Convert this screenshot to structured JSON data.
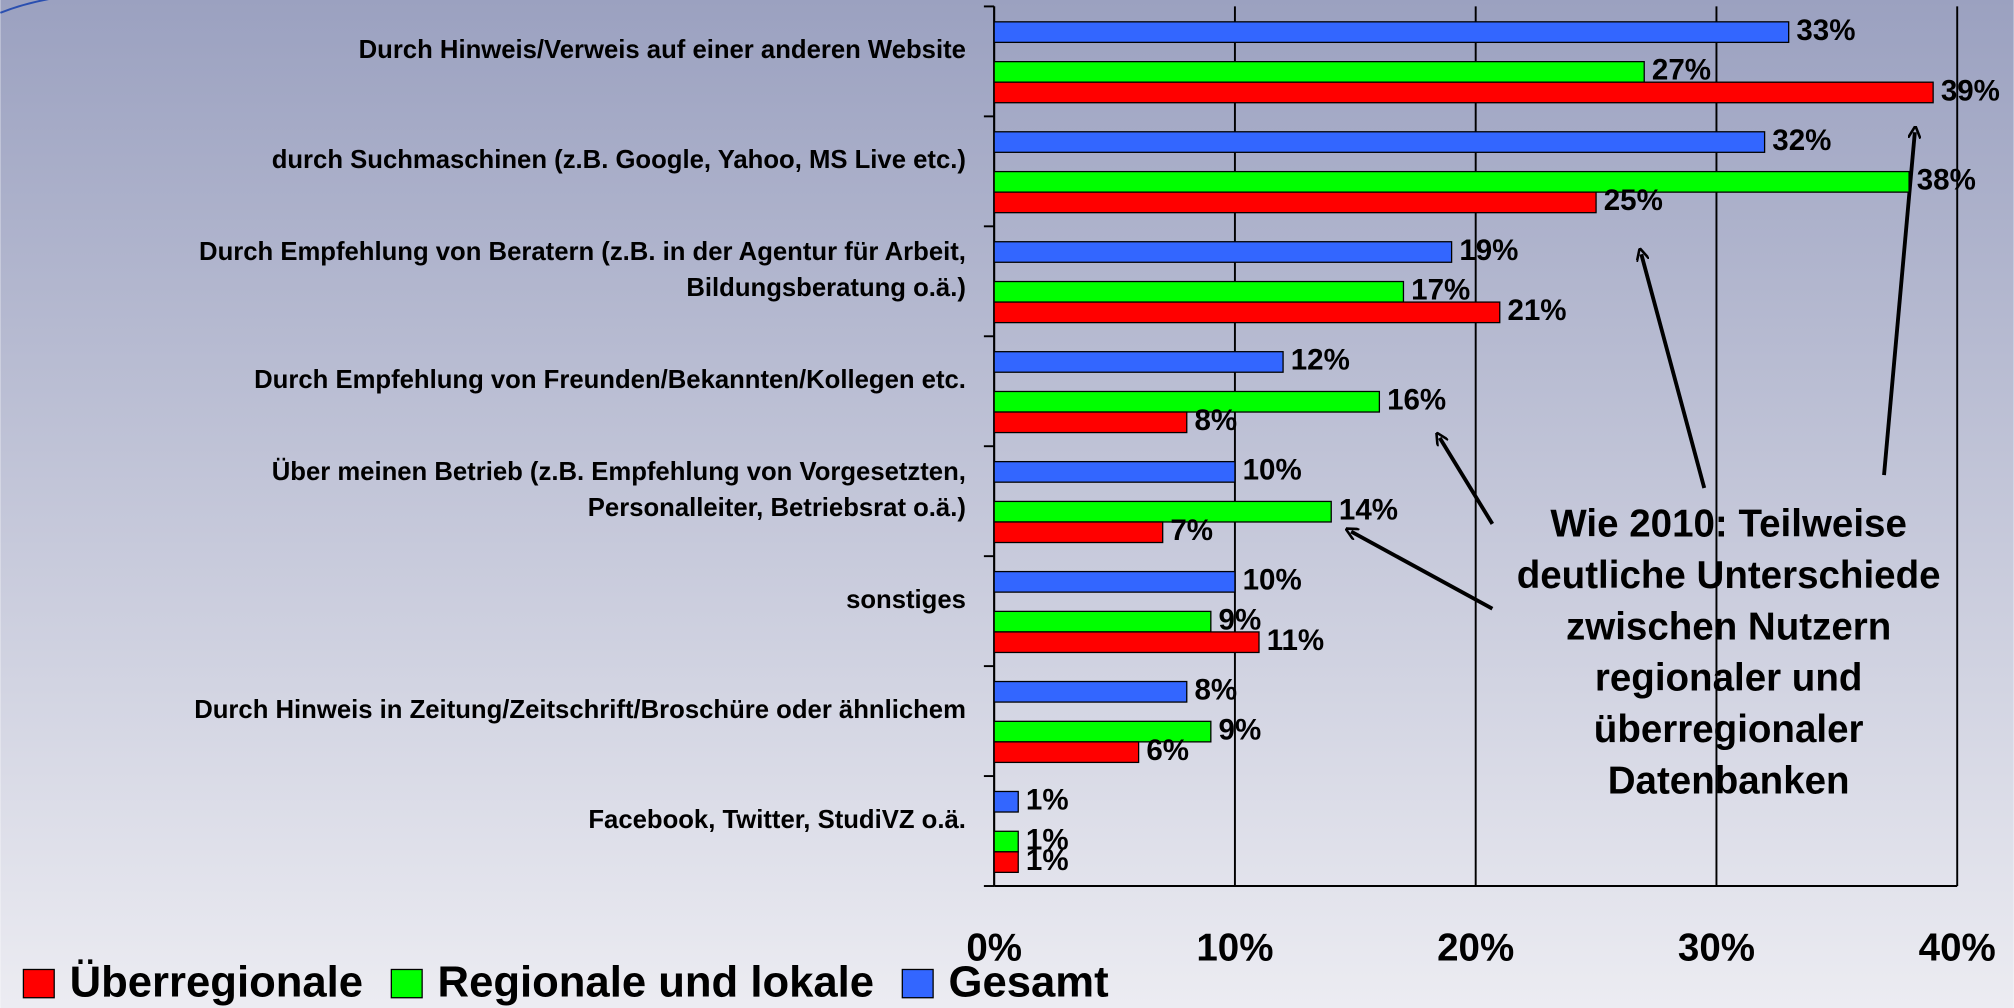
{
  "chart_data": {
    "type": "hbar",
    "categories": [
      [
        "Durch Hinweis/Verweis auf einer anderen Website"
      ],
      [
        "durch Suchmaschinen (z.B. Google, Yahoo, MS Live etc.)"
      ],
      [
        "Durch Empfehlung von Beratern (z.B. in der Agentur für Arbeit,",
        "Bildungsberatung o.ä.)"
      ],
      [
        "Durch Empfehlung von Freunden/Bekannten/Kollegen etc."
      ],
      [
        "Über meinen Betrieb (z.B. Empfehlung von Vorgesetzten,",
        "Personalleiter, Betriebsrat o.ä.)"
      ],
      [
        "sonstiges"
      ],
      [
        "Durch Hinweis in Zeitung/Zeitschrift/Broschüre oder ähnlichem"
      ],
      [
        "Facebook, Twitter, StudiVZ o.ä."
      ]
    ],
    "series": [
      {
        "name": "Gesamt",
        "color": "#3366ff",
        "values": [
          33,
          32,
          19,
          12,
          10,
          10,
          8,
          1
        ],
        "value_labels": [
          "33%",
          "32%",
          "19%",
          "12%",
          "10%",
          "10%",
          "8%",
          "1%"
        ]
      },
      {
        "name": "Regionale und lokale",
        "color": "#00ff00",
        "values": [
          27,
          38,
          17,
          16,
          14,
          9,
          9,
          1
        ],
        "value_labels": [
          "27%",
          "38%",
          "17%",
          "16%",
          "14%",
          "9%",
          "9%",
          "1%"
        ]
      },
      {
        "name": "Überregionale",
        "color": "#ff0000",
        "values": [
          39,
          25,
          21,
          8,
          7,
          11,
          6,
          1
        ],
        "value_labels": [
          "39%",
          "25%",
          "21%",
          "8%",
          "7%",
          "11%",
          "6%",
          "1%"
        ]
      }
    ],
    "xlim": [
      0,
      40
    ],
    "xticks": [
      {
        "value": 0,
        "label": "0%"
      },
      {
        "value": 10,
        "label": "10%"
      },
      {
        "value": 20,
        "label": "20%"
      },
      {
        "value": 30,
        "label": "30%"
      },
      {
        "value": 40,
        "label": "40%"
      }
    ],
    "grid": true,
    "legend": "bottom",
    "annotation": [
      "Wie 2010: Teilweise",
      "deutliche  Unterschiede",
      "zwischen Nutzern",
      "regionaler und",
      "überregionaler",
      "Datenbanken"
    ]
  }
}
